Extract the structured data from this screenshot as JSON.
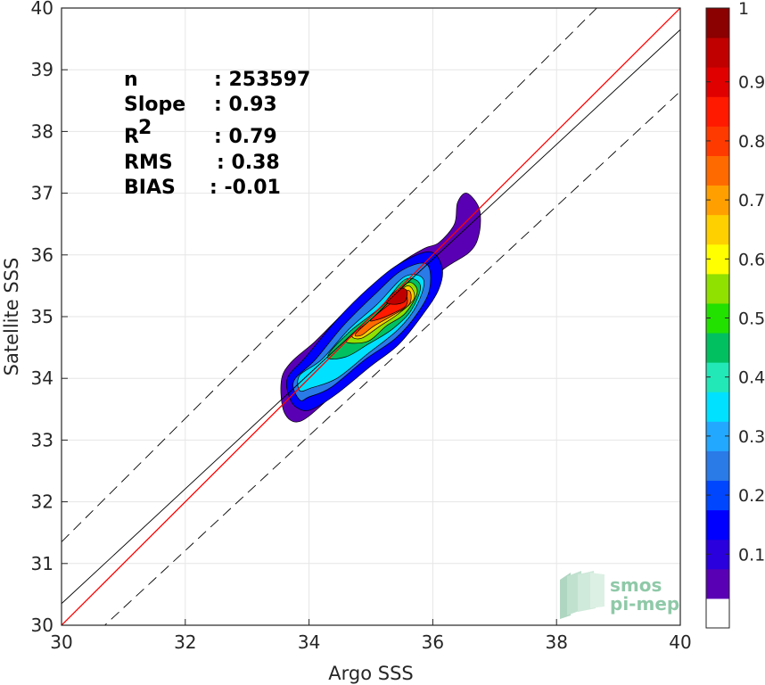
{
  "chart_data": {
    "type": "density-scatter",
    "xlabel": "Argo SSS",
    "ylabel": "Satellite SSS",
    "xlim": [
      30,
      40
    ],
    "ylim": [
      30,
      40
    ],
    "x_ticks": [
      "30",
      "32",
      "34",
      "36",
      "38",
      "40"
    ],
    "y_ticks": [
      "30",
      "31",
      "32",
      "33",
      "34",
      "35",
      "36",
      "37",
      "38",
      "39",
      "40"
    ],
    "grid": true,
    "stats": [
      {
        "label": "n",
        "value": ": 253597"
      },
      {
        "label": "Slope",
        "value": ": 0.93"
      },
      {
        "label": "R",
        "sup": "2",
        "value": ": 0.79"
      },
      {
        "label": "RMS",
        "value": ": 0.38"
      },
      {
        "label": "BIAS",
        "value": ": -0.01"
      }
    ],
    "lines": {
      "identity": {
        "slope": 1,
        "intercept": 0,
        "color": "#ff0000"
      },
      "regression": {
        "x": [
          30,
          40
        ],
        "y": [
          30.35,
          39.65
        ],
        "color": "#000000"
      },
      "bounds": [
        {
          "x": [
            30,
            40
          ],
          "y": [
            31.35,
            41.35
          ],
          "style": "dashed"
        },
        {
          "x": [
            30,
            40
          ],
          "y": [
            29.35,
            38.65
          ],
          "style": "dashed"
        }
      ]
    },
    "density_contours": [
      {
        "level": 0.05,
        "color": "#5a00b4",
        "pts": [
          [
            33.85,
            33.3
          ],
          [
            33.6,
            33.45
          ],
          [
            33.55,
            33.95
          ],
          [
            33.7,
            34.25
          ],
          [
            34.1,
            34.6
          ],
          [
            34.55,
            35.05
          ],
          [
            35.05,
            35.5
          ],
          [
            35.45,
            35.85
          ],
          [
            35.85,
            36.1
          ],
          [
            36.1,
            36.2
          ],
          [
            36.35,
            36.5
          ],
          [
            36.4,
            36.85
          ],
          [
            36.55,
            37.0
          ],
          [
            36.75,
            36.75
          ],
          [
            36.75,
            36.35
          ],
          [
            36.6,
            36.05
          ],
          [
            36.15,
            35.75
          ],
          [
            35.85,
            35.35
          ],
          [
            35.6,
            34.9
          ],
          [
            35.2,
            34.45
          ],
          [
            34.75,
            34.05
          ],
          [
            34.3,
            33.65
          ]
        ]
      },
      {
        "level": 0.15,
        "color": "#0000ff",
        "pts": [
          [
            33.85,
            33.5
          ],
          [
            33.7,
            33.65
          ],
          [
            33.65,
            34.0
          ],
          [
            33.95,
            34.35
          ],
          [
            34.45,
            34.95
          ],
          [
            34.95,
            35.45
          ],
          [
            35.45,
            35.85
          ],
          [
            35.95,
            36.05
          ],
          [
            36.15,
            35.8
          ],
          [
            36.1,
            35.45
          ],
          [
            35.85,
            35.05
          ],
          [
            35.45,
            34.55
          ],
          [
            35.0,
            34.2
          ],
          [
            34.45,
            33.75
          ],
          [
            34.05,
            33.5
          ]
        ]
      },
      {
        "level": 0.25,
        "color": "#2a7ae8",
        "pts": [
          [
            33.85,
            33.65
          ],
          [
            33.75,
            33.95
          ],
          [
            34.1,
            34.3
          ],
          [
            34.55,
            34.85
          ],
          [
            35.05,
            35.35
          ],
          [
            35.5,
            35.75
          ],
          [
            35.9,
            35.85
          ],
          [
            35.95,
            35.45
          ],
          [
            35.75,
            35.05
          ],
          [
            35.4,
            34.65
          ],
          [
            34.9,
            34.3
          ],
          [
            34.35,
            33.85
          ],
          [
            34.0,
            33.7
          ]
        ]
      },
      {
        "level": 0.35,
        "color": "#00e0ff",
        "pts": [
          [
            33.85,
            33.8
          ],
          [
            33.85,
            34.05
          ],
          [
            34.2,
            34.3
          ],
          [
            34.65,
            34.8
          ],
          [
            35.1,
            35.2
          ],
          [
            35.55,
            35.65
          ],
          [
            35.85,
            35.6
          ],
          [
            35.75,
            35.2
          ],
          [
            35.45,
            34.8
          ],
          [
            34.95,
            34.4
          ],
          [
            34.45,
            34.0
          ],
          [
            34.05,
            33.85
          ]
        ]
      },
      {
        "level": 0.45,
        "color": "#00c060",
        "pts": [
          [
            34.3,
            34.35
          ],
          [
            34.65,
            34.75
          ],
          [
            35.15,
            35.15
          ],
          [
            35.55,
            35.6
          ],
          [
            35.8,
            35.5
          ],
          [
            35.65,
            35.1
          ],
          [
            35.35,
            34.8
          ],
          [
            34.95,
            34.55
          ],
          [
            34.6,
            34.35
          ]
        ]
      },
      {
        "level": 0.55,
        "color": "#90e000",
        "pts": [
          [
            34.6,
            34.6
          ],
          [
            34.95,
            34.85
          ],
          [
            35.3,
            35.25
          ],
          [
            35.6,
            35.55
          ],
          [
            35.75,
            35.4
          ],
          [
            35.55,
            35.05
          ],
          [
            35.25,
            34.85
          ],
          [
            34.95,
            34.6
          ]
        ]
      },
      {
        "level": 0.65,
        "color": "#ffd000",
        "pts": [
          [
            34.7,
            34.7
          ],
          [
            35.0,
            34.95
          ],
          [
            35.35,
            35.3
          ],
          [
            35.6,
            35.5
          ],
          [
            35.7,
            35.3
          ],
          [
            35.45,
            35.05
          ],
          [
            35.15,
            34.85
          ],
          [
            34.85,
            34.65
          ]
        ]
      },
      {
        "level": 0.75,
        "color": "#ff6a00",
        "pts": [
          [
            34.75,
            34.72
          ],
          [
            35.05,
            35.0
          ],
          [
            35.4,
            35.32
          ],
          [
            35.62,
            35.42
          ],
          [
            35.62,
            35.2
          ],
          [
            35.35,
            35.02
          ],
          [
            35.05,
            34.85
          ],
          [
            34.85,
            34.7
          ]
        ]
      },
      {
        "level": 0.85,
        "color": "#ff1a00",
        "pts": [
          [
            35.0,
            34.95
          ],
          [
            35.3,
            35.2
          ],
          [
            35.55,
            35.35
          ],
          [
            35.57,
            35.18
          ],
          [
            35.35,
            35.05
          ],
          [
            35.1,
            34.95
          ]
        ]
      },
      {
        "level": 0.95,
        "color": "#c00000",
        "pts": [
          [
            35.25,
            35.25
          ],
          [
            35.45,
            35.45
          ],
          [
            35.58,
            35.42
          ],
          [
            35.55,
            35.25
          ],
          [
            35.38,
            35.2
          ]
        ]
      }
    ],
    "colorbar": {
      "ticks": [
        "0.1",
        "0.2",
        "0.3",
        "0.4",
        "0.5",
        "0.6",
        "0.7",
        "0.8",
        "0.9",
        "1"
      ],
      "tick_values": [
        0.1,
        0.2,
        0.3,
        0.4,
        0.5,
        0.6,
        0.7,
        0.8,
        0.9,
        1.0
      ],
      "bands": [
        "#ffffff",
        "#5a00b4",
        "#2a00dc",
        "#0000ff",
        "#0046ff",
        "#2a7ae8",
        "#22a8ff",
        "#00e0ff",
        "#22e8b8",
        "#00c060",
        "#22e000",
        "#90e000",
        "#ffff00",
        "#ffd000",
        "#ffa000",
        "#ff6a00",
        "#ff3a00",
        "#ff1a00",
        "#e00000",
        "#c00000",
        "#8b0000"
      ]
    }
  },
  "logo": {
    "line1": "smos",
    "line2": "pi-mep"
  }
}
